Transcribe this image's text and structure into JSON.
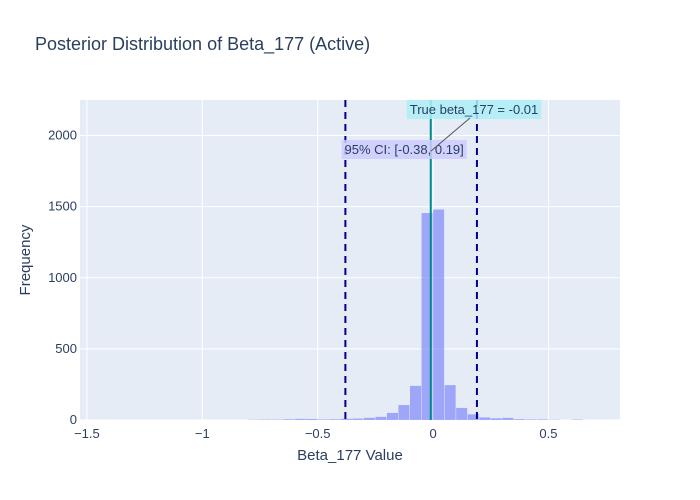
{
  "chart_data": {
    "type": "bar",
    "title": "Posterior Distribution of Beta_177 (Active)",
    "xlabel": "Beta_177 Value",
    "ylabel": "Frequency",
    "xlim": [
      -1.53,
      0.81
    ],
    "ylim": [
      0,
      2250
    ],
    "xticks": [
      -1.5,
      -1,
      -0.5,
      0,
      0.5
    ],
    "xtick_labels": [
      "−1.5",
      "−1",
      "−0.5",
      "0",
      "0.5"
    ],
    "yticks": [
      0,
      500,
      1000,
      1500,
      2000
    ],
    "ytick_labels": [
      "0",
      "500",
      "1000",
      "1500",
      "2000"
    ],
    "grid": true,
    "bin_width": 0.05,
    "bins": [
      {
        "x": -0.775,
        "y": 2
      },
      {
        "x": -0.725,
        "y": 3
      },
      {
        "x": -0.675,
        "y": 3
      },
      {
        "x": -0.625,
        "y": 5
      },
      {
        "x": -0.575,
        "y": 8
      },
      {
        "x": -0.525,
        "y": 7
      },
      {
        "x": -0.475,
        "y": 4
      },
      {
        "x": -0.425,
        "y": 5
      },
      {
        "x": -0.375,
        "y": 8
      },
      {
        "x": -0.325,
        "y": 10
      },
      {
        "x": -0.275,
        "y": 15
      },
      {
        "x": -0.225,
        "y": 22
      },
      {
        "x": -0.175,
        "y": 50
      },
      {
        "x": -0.125,
        "y": 105
      },
      {
        "x": -0.075,
        "y": 240
      },
      {
        "x": -0.025,
        "y": 1455
      },
      {
        "x": 0.025,
        "y": 1480
      },
      {
        "x": 0.075,
        "y": 245
      },
      {
        "x": 0.125,
        "y": 85
      },
      {
        "x": 0.175,
        "y": 40
      },
      {
        "x": 0.225,
        "y": 18
      },
      {
        "x": 0.275,
        "y": 12
      },
      {
        "x": 0.325,
        "y": 15
      },
      {
        "x": 0.375,
        "y": 6
      },
      {
        "x": 0.425,
        "y": 4
      },
      {
        "x": 0.475,
        "y": 4
      },
      {
        "x": 0.525,
        "y": 2
      },
      {
        "x": 0.625,
        "y": 3
      }
    ],
    "ci_lower": -0.38,
    "ci_upper": 0.19,
    "true_value": -0.01,
    "ci_label": "95% CI: [-0.38, 0.19]",
    "true_label": "True beta_177 = -0.01",
    "colors": {
      "bars": "#636efa",
      "ci_lines": "#00008b",
      "true_line": "#008b8b",
      "plot_bg": "#e5ecf6",
      "ci_label_bg": "#ccccff",
      "true_label_bg": "#aeeef8"
    }
  }
}
